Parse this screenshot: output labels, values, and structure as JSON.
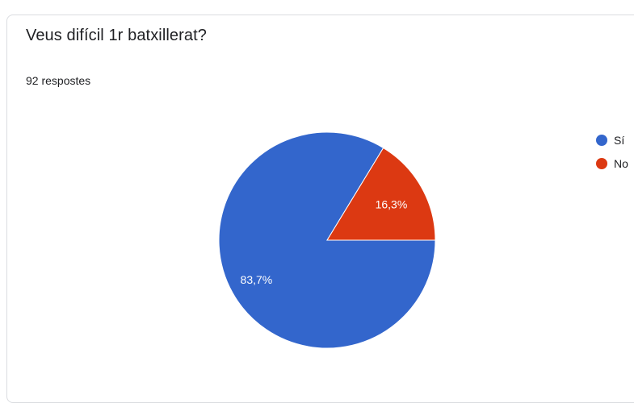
{
  "question": {
    "title": "Veus difícil 1r batxillerat?",
    "responses": "92 respostes"
  },
  "chart_data": {
    "type": "pie",
    "title": "Veus difícil 1r batxillerat?",
    "categories": [
      "Sí",
      "No"
    ],
    "values": [
      83.7,
      16.3
    ],
    "labels": [
      "83,7%",
      "16,3%"
    ],
    "colors": [
      "#3366cc",
      "#dc3912"
    ],
    "legend": "right"
  }
}
